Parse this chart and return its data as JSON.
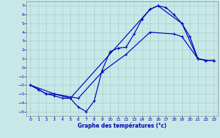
{
  "xlabel": "Graphe des températures (°c)",
  "xlim": [
    -0.5,
    23.5
  ],
  "ylim": [
    -5.5,
    7.5
  ],
  "xticks": [
    0,
    1,
    2,
    3,
    4,
    5,
    6,
    7,
    8,
    9,
    10,
    11,
    12,
    13,
    14,
    15,
    16,
    17,
    18,
    19,
    20,
    21,
    22,
    23
  ],
  "yticks": [
    -5,
    -4,
    -3,
    -2,
    -1,
    0,
    1,
    2,
    3,
    4,
    5,
    6,
    7
  ],
  "bg_color": "#c8e8e8",
  "grid_color": "#a8cccc",
  "line_color": "#0000bb",
  "line1_x": [
    0,
    1,
    2,
    3,
    4,
    5,
    6,
    7,
    8,
    9,
    10,
    11,
    12,
    13,
    14,
    15,
    16,
    17,
    18,
    19,
    20,
    21,
    22,
    23
  ],
  "line1_y": [
    -2.0,
    -2.5,
    -3.0,
    -3.2,
    -3.5,
    -3.5,
    -4.5,
    -5.0,
    -3.8,
    -0.3,
    1.8,
    2.2,
    2.3,
    3.8,
    5.5,
    6.6,
    7.0,
    6.8,
    6.0,
    5.0,
    3.5,
    1.0,
    0.8,
    0.8
  ],
  "line2_x": [
    0,
    1,
    2,
    3,
    5,
    15,
    16,
    19,
    21,
    22,
    23
  ],
  "line2_y": [
    -2.0,
    -2.5,
    -3.0,
    -3.0,
    -3.5,
    6.6,
    7.0,
    5.0,
    1.0,
    0.8,
    0.8
  ],
  "line3_x": [
    0,
    3,
    6,
    9,
    12,
    15,
    18,
    19,
    21,
    22,
    23
  ],
  "line3_y": [
    -2.0,
    -3.0,
    -3.5,
    -0.5,
    1.5,
    4.0,
    3.8,
    3.5,
    1.0,
    0.8,
    0.8
  ]
}
